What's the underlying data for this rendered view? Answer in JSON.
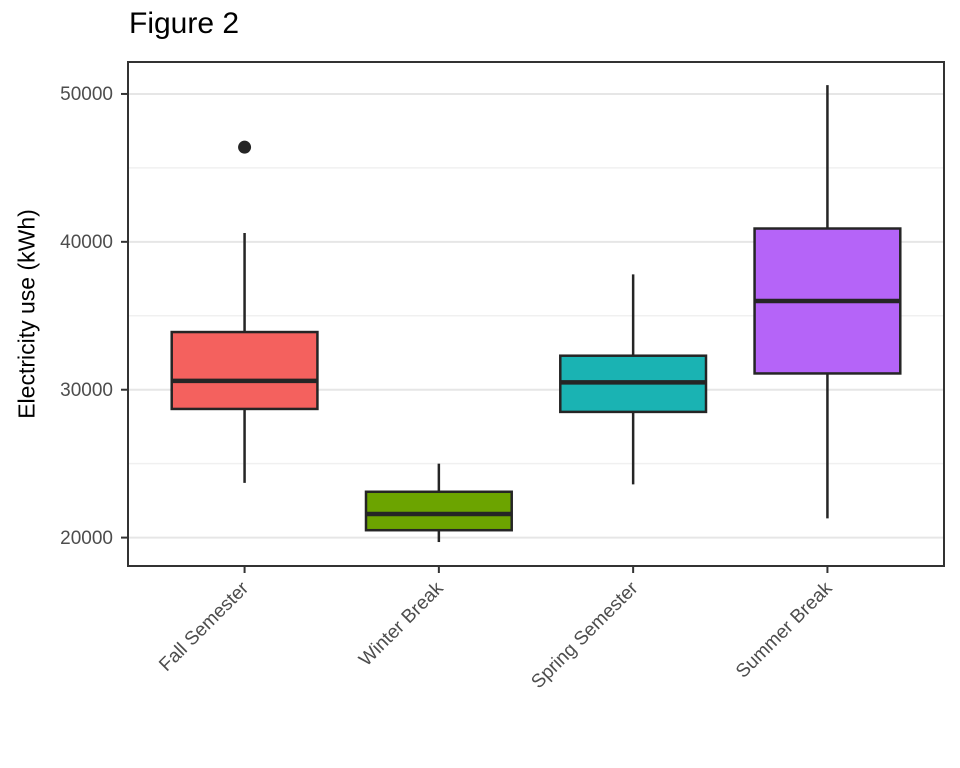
{
  "chart_data": {
    "type": "boxplot",
    "title": "Figure 2",
    "xlabel": "",
    "ylabel": "Electricity use (kWh)",
    "categories": [
      "Fall Semester",
      "Winter Break",
      "Spring Semester",
      "Summer Break"
    ],
    "series": [
      {
        "name": "Fall Semester",
        "color": "#F4615E",
        "min": 23700,
        "q1": 28700,
        "median": 30600,
        "q3": 33900,
        "max": 40600,
        "outliers": [
          46400
        ]
      },
      {
        "name": "Winter Break",
        "color": "#6CA400",
        "min": 19700,
        "q1": 20500,
        "median": 21600,
        "q3": 23100,
        "max": 25000,
        "outliers": []
      },
      {
        "name": "Spring Semester",
        "color": "#1AB3B3",
        "min": 23600,
        "q1": 28500,
        "median": 30500,
        "q3": 32300,
        "max": 37800,
        "outliers": []
      },
      {
        "name": "Summer Break",
        "color": "#B564F8",
        "min": 21300,
        "q1": 31100,
        "median": 36000,
        "q3": 40900,
        "max": 50600,
        "outliers": []
      }
    ],
    "y_ticks": [
      50000,
      40000,
      30000,
      20000
    ],
    "y_minor_ticks": [
      45000,
      35000,
      25000
    ],
    "ylim": [
      18080,
      52160
    ],
    "grid": true,
    "legend": false,
    "style": {
      "panel_background": "#ffffff",
      "panel_border_color": "#333333",
      "major_grid_color": "#e6e6e6",
      "minor_grid_color": "#f0f0f0",
      "box_stroke_color": "#252525",
      "outlier_color": "#252525",
      "tick_color": "#333333",
      "tick_label_color": "#4d4d4d"
    }
  }
}
